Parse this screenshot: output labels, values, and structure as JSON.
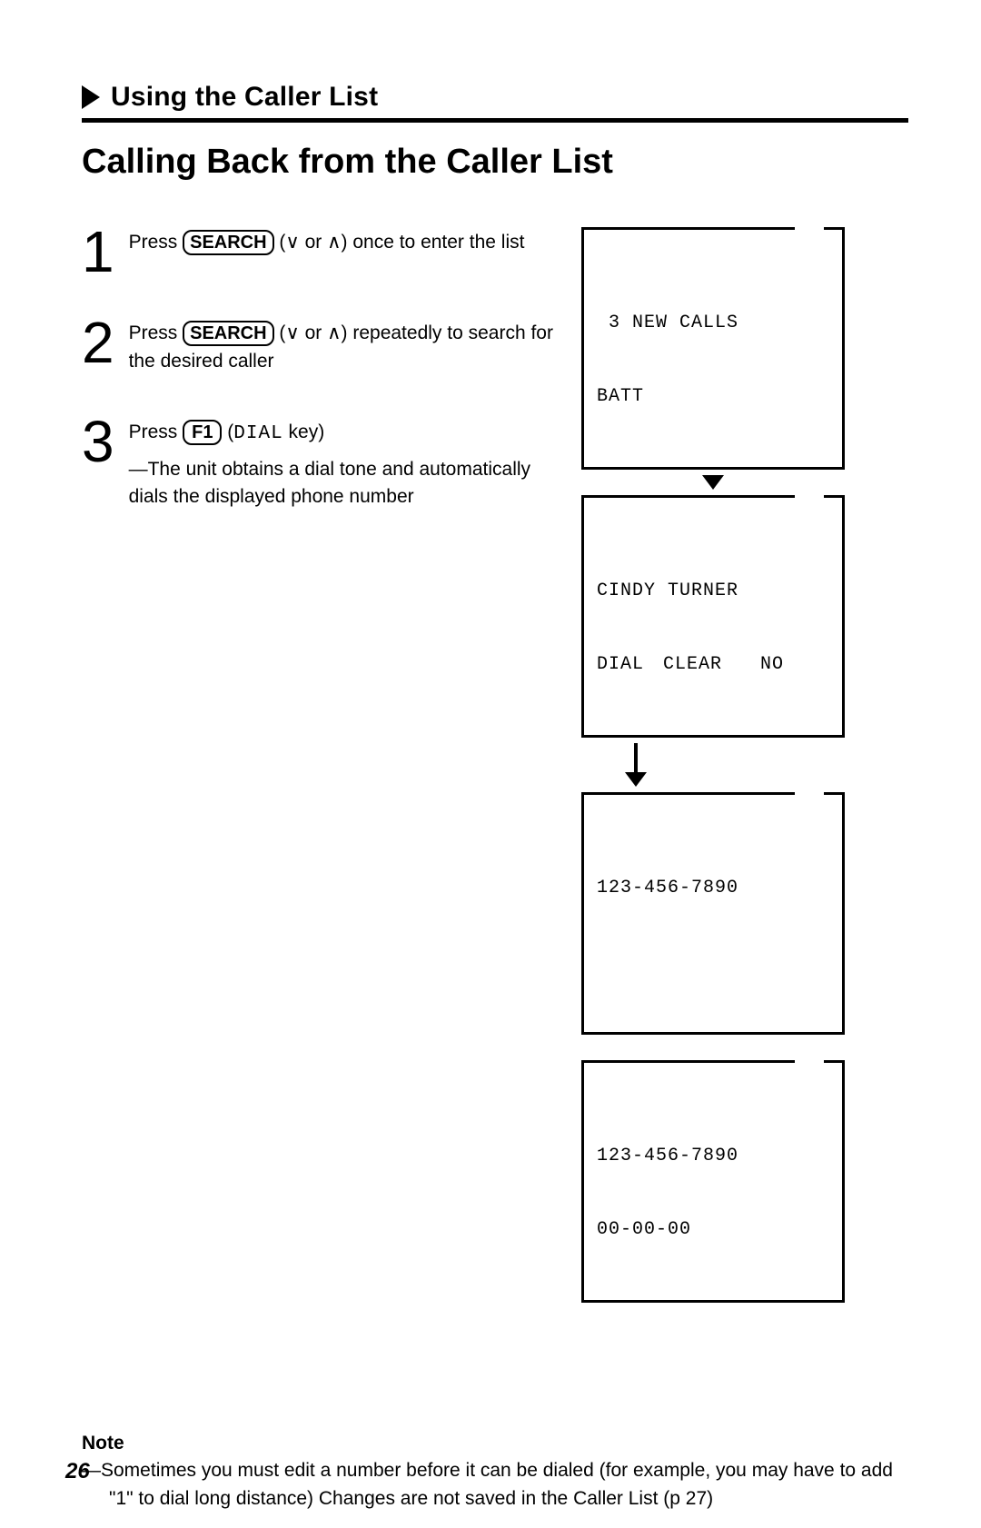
{
  "section": {
    "title": "Using the Caller List"
  },
  "title": "Calling Back from the Caller List",
  "keys": {
    "search": "SEARCH",
    "f1": "F1",
    "dial_word": "DIAL"
  },
  "symbols": {
    "down": "∨",
    "up": "∧",
    "or": "or"
  },
  "steps": [
    {
      "num": "1",
      "pre": "Press ",
      "mid_parens_open": " (",
      "mid_parens_close": ") ",
      "tail": "once to enter the list"
    },
    {
      "num": "2",
      "pre": "Press ",
      "mid_parens_open": " (",
      "mid_parens_close": ") ",
      "tail": "repeatedly to search for the desired caller"
    },
    {
      "num": "3",
      "pre": "Press ",
      "key_after": " (",
      "key_after_close": " key)",
      "sub": "—The unit obtains a dial tone and automatically dials the displayed phone number"
    }
  ],
  "screens": {
    "s1": {
      "l1": " 3 NEW CALLS",
      "l2": "BATT"
    },
    "s2": {
      "l1": "CINDY TURNER",
      "l2": "DIAL CLEAR  NO"
    },
    "s3": {
      "l1": "123-456-7890",
      "l2": " "
    },
    "s4": {
      "l1": "123-456-7890",
      "l2": "00-00-00"
    }
  },
  "note": {
    "label": "Note",
    "body": "—Sometimes you must edit a number before it can be dialed (for example, you may have to add \"1\" to dial long distance)  Changes are not saved in the Caller List (p  27)"
  },
  "page_number": "26"
}
